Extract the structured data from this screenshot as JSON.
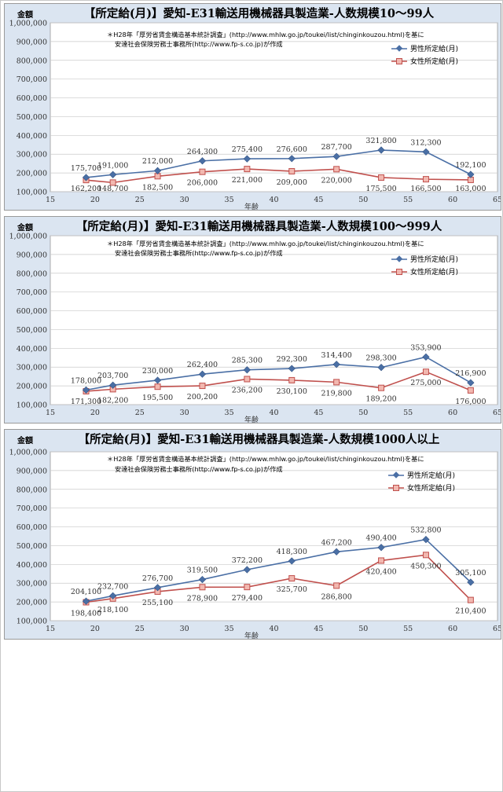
{
  "legend": {
    "male": "男性所定給(月)",
    "female": "女性所定給(月)"
  },
  "colors": {
    "male": "#4a6fa5",
    "female": "#c0504d",
    "female_fill": "#f2b8b0",
    "plot_bg": "#ffffff",
    "outer_bg": "#dbe5f1"
  },
  "chart_data": [
    {
      "type": "line",
      "title": "【所定給(月)】愛知-E31輸送用機械器具製造業-人数規模10～99人",
      "ylabel": "金額",
      "xlabel": "年齢",
      "note_lines": [
        "＊H28年「厚労省賃金構造基本統計調査」(http://www.mhlw.go.jp/toukei/list/chinginkouzou.html)を基に",
        "安達社会保険労務士事務所(http://www.fp-s.co.jp)が作成"
      ],
      "xlim": [
        15,
        65
      ],
      "ylim": [
        100000,
        1000000
      ],
      "x": [
        19,
        22,
        27,
        32,
        37,
        42,
        47,
        52,
        57,
        62
      ],
      "series": [
        {
          "name": "男性所定給(月)",
          "values": [
            175700,
            191000,
            212000,
            264300,
            275400,
            276600,
            287700,
            321800,
            312300,
            192100
          ],
          "labels": [
            "175,700",
            "191,000",
            "212,000",
            "264,300",
            "275,400",
            "276,600",
            "287,700",
            "321,800",
            "312,300",
            "192,100"
          ]
        },
        {
          "name": "女性所定給(月)",
          "values": [
            162200,
            148700,
            182500,
            206000,
            221000,
            209000,
            220000,
            175500,
            166500,
            163000
          ],
          "labels": [
            "162,200",
            "148,700",
            "182,500",
            "206,000",
            "221,000",
            "209,000",
            "220,000",
            "175,500",
            "166,500",
            "163,000"
          ]
        }
      ]
    },
    {
      "type": "line",
      "title": "【所定給(月)】愛知-E31輸送用機械器具製造業-人数規模100～999人",
      "ylabel": "金額",
      "xlabel": "年齢",
      "note_lines": [
        "＊H28年「厚労省賃金構造基本統計調査」(http://www.mhlw.go.jp/toukei/list/chinginkouzou.html)を基に",
        "安達社会保険労務士事務所(http://www.fp-s.co.jp)が作成"
      ],
      "xlim": [
        15,
        65
      ],
      "ylim": [
        100000,
        1000000
      ],
      "x": [
        19,
        22,
        27,
        32,
        37,
        42,
        47,
        52,
        57,
        62
      ],
      "series": [
        {
          "name": "男性所定給(月)",
          "values": [
            178000,
            203700,
            230000,
            262400,
            285300,
            292300,
            314400,
            298300,
            353900,
            216900
          ],
          "labels": [
            "178,000",
            "203,700",
            "230,000",
            "262,400",
            "285,300",
            "292,300",
            "314,400",
            "298,300",
            "353,900",
            "216,900"
          ]
        },
        {
          "name": "女性所定給(月)",
          "values": [
            171300,
            182200,
            195500,
            200200,
            236200,
            230100,
            219800,
            189200,
            275000,
            176000
          ],
          "labels": [
            "171,300",
            "182,200",
            "195,500",
            "200,200",
            "236,200",
            "230,100",
            "219,800",
            "189,200",
            "275,000",
            "176,000"
          ]
        }
      ]
    },
    {
      "type": "line",
      "title": "【所定給(月)】愛知-E31輸送用機械器具製造業-人数規模1000人以上",
      "ylabel": "金額",
      "xlabel": "年齢",
      "note_lines": [
        "＊H28年「厚労省賃金構造基本統計調査」(http://www.mhlw.go.jp/toukei/list/chinginkouzou.html)を基に",
        "安達社会保険労務士事務所(http://www.fp-s.co.jp)が作成"
      ],
      "xlim": [
        15,
        65
      ],
      "ylim": [
        100000,
        1000000
      ],
      "x": [
        19,
        22,
        27,
        32,
        37,
        42,
        47,
        52,
        57,
        62
      ],
      "series": [
        {
          "name": "男性所定給(月)",
          "values": [
            204100,
            232700,
            276700,
            319500,
            372200,
            418300,
            467200,
            490400,
            532800,
            305100
          ],
          "labels": [
            "204,100",
            "232,700",
            "276,700",
            "319,500",
            "372,200",
            "418,300",
            "467,200",
            "490,400",
            "532,800",
            "305,100"
          ]
        },
        {
          "name": "女性所定給(月)",
          "values": [
            198400,
            218100,
            255100,
            278900,
            279400,
            325700,
            286800,
            420400,
            450300,
            210400
          ],
          "labels": [
            "198,400",
            "218,100",
            "255,100",
            "278,900",
            "279,400",
            "325,700",
            "286,800",
            "420,400",
            "450,300",
            "210,400"
          ]
        }
      ]
    }
  ]
}
